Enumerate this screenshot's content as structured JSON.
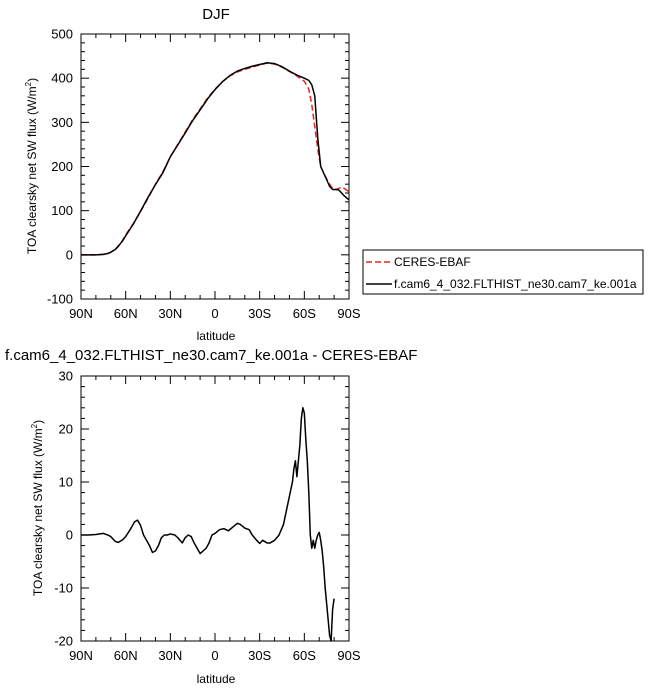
{
  "chart_data": [
    {
      "type": "line",
      "title": "DJF",
      "xlabel": "latitude",
      "ylabel": "TOA clearsky net SW flux (W/m",
      "ylabel_sup": "2",
      "ylabel_end": ")",
      "xlim": [
        90,
        -90
      ],
      "ylim": [
        -100,
        500
      ],
      "x_ticks": [
        90,
        60,
        30,
        0,
        -30,
        -60,
        -90
      ],
      "x_tick_labels": [
        "90N",
        "60N",
        "30N",
        "0",
        "30S",
        "60S",
        "90S"
      ],
      "y_ticks": [
        -100,
        0,
        100,
        200,
        300,
        400,
        500
      ],
      "y_tick_labels": [
        "-100",
        "0",
        "100",
        "200",
        "300",
        "400",
        "500"
      ],
      "legend": "outside-right",
      "series": [
        {
          "name": "CERES-EBAF",
          "color": "#e8251f",
          "dash": "dashed",
          "points": [
            [
              90,
              0
            ],
            [
              85,
              0
            ],
            [
              80,
              0
            ],
            [
              75,
              1
            ],
            [
              72,
              3
            ],
            [
              70,
              6
            ],
            [
              67,
              12
            ],
            [
              65,
              20
            ],
            [
              62,
              33
            ],
            [
              60,
              45
            ],
            [
              55,
              70
            ],
            [
              50,
              98
            ],
            [
              45,
              128
            ],
            [
              40,
              160
            ],
            [
              35,
              188
            ],
            [
              30,
              222
            ],
            [
              25,
              250
            ],
            [
              20,
              278
            ],
            [
              15,
              306
            ],
            [
              10,
              330
            ],
            [
              5,
              355
            ],
            [
              0,
              375
            ],
            [
              -5,
              392
            ],
            [
              -10,
              405
            ],
            [
              -15,
              414
            ],
            [
              -20,
              420
            ],
            [
              -25,
              425
            ],
            [
              -30,
              430
            ],
            [
              -35,
              434
            ],
            [
              -40,
              432
            ],
            [
              -45,
              425
            ],
            [
              -50,
              415
            ],
            [
              -55,
              405
            ],
            [
              -60,
              393
            ],
            [
              -63,
              375
            ],
            [
              -65,
              340
            ],
            [
              -67,
              290
            ],
            [
              -69,
              240
            ],
            [
              -71,
              200
            ],
            [
              -73,
              185
            ],
            [
              -75,
              172
            ],
            [
              -77,
              160
            ],
            [
              -79,
              150
            ],
            [
              -81,
              148
            ],
            [
              -83,
              150
            ],
            [
              -85,
              153
            ],
            [
              -87,
              150
            ],
            [
              -89,
              145
            ],
            [
              -90,
              142
            ]
          ]
        },
        {
          "name": "f.cam6_4_032.FLTHIST_ne30.cam7_ke.001a",
          "color": "#000000",
          "dash": "solid",
          "points": [
            [
              90,
              0
            ],
            [
              85,
              0
            ],
            [
              80,
              0
            ],
            [
              75,
              1
            ],
            [
              72,
              3
            ],
            [
              70,
              6
            ],
            [
              67,
              12
            ],
            [
              65,
              19
            ],
            [
              62,
              32
            ],
            [
              60,
              43
            ],
            [
              55,
              69
            ],
            [
              50,
              99
            ],
            [
              45,
              130
            ],
            [
              40,
              159
            ],
            [
              35,
              186
            ],
            [
              30,
              222
            ],
            [
              25,
              249
            ],
            [
              20,
              276
            ],
            [
              15,
              304
            ],
            [
              10,
              328
            ],
            [
              5,
              353
            ],
            [
              0,
              374
            ],
            [
              -5,
              392
            ],
            [
              -10,
              406
            ],
            [
              -15,
              416
            ],
            [
              -20,
              422
            ],
            [
              -25,
              427
            ],
            [
              -30,
              431
            ],
            [
              -35,
              435
            ],
            [
              -40,
              433
            ],
            [
              -45,
              426
            ],
            [
              -50,
              416
            ],
            [
              -55,
              407
            ],
            [
              -60,
              400
            ],
            [
              -63,
              395
            ],
            [
              -65,
              385
            ],
            [
              -67,
              360
            ],
            [
              -69,
              265
            ],
            [
              -71,
              200
            ],
            [
              -73,
              185
            ],
            [
              -75,
              170
            ],
            [
              -77,
              155
            ],
            [
              -79,
              148
            ],
            [
              -81,
              148
            ],
            [
              -83,
              147
            ],
            [
              -85,
              140
            ],
            [
              -87,
              133
            ],
            [
              -89,
              127
            ],
            [
              -90,
              125
            ]
          ]
        }
      ]
    },
    {
      "type": "line",
      "title": "f.cam6_4_032.FLTHIST_ne30.cam7_ke.001a - CERES-EBAF",
      "xlabel": "latitude",
      "ylabel": "TOA clearsky net SW flux (W/m",
      "ylabel_sup": "2",
      "ylabel_end": ")",
      "xlim": [
        90,
        -90
      ],
      "ylim": [
        -20,
        30
      ],
      "x_ticks": [
        90,
        60,
        30,
        0,
        -30,
        -60,
        -90
      ],
      "x_tick_labels": [
        "90N",
        "60N",
        "30N",
        "0",
        "30S",
        "60S",
        "90S"
      ],
      "y_ticks": [
        -20,
        -10,
        0,
        10,
        20,
        30
      ],
      "y_tick_labels": [
        "-20",
        "-10",
        "0",
        "10",
        "20",
        "30"
      ],
      "series": [
        {
          "color": "#000000",
          "dash": "solid",
          "points": [
            [
              90,
              0
            ],
            [
              85,
              0
            ],
            [
              80,
              0.1
            ],
            [
              75,
              0.3
            ],
            [
              72,
              0
            ],
            [
              70,
              -0.3
            ],
            [
              67,
              -1.2
            ],
            [
              65,
              -1.4
            ],
            [
              62,
              -0.9
            ],
            [
              60,
              -0.3
            ],
            [
              57,
              1
            ],
            [
              54,
              2.5
            ],
            [
              52,
              2.8
            ],
            [
              50,
              1.8
            ],
            [
              48,
              0
            ],
            [
              46,
              -1
            ],
            [
              44,
              -2
            ],
            [
              42,
              -3.3
            ],
            [
              40,
              -3
            ],
            [
              38,
              -2
            ],
            [
              36,
              -0.5
            ],
            [
              34,
              0
            ],
            [
              32,
              0
            ],
            [
              30,
              0.2
            ],
            [
              27,
              0
            ],
            [
              25,
              -0.5
            ],
            [
              22,
              -1.5
            ],
            [
              20,
              -0.5
            ],
            [
              18,
              0
            ],
            [
              16,
              -0.3
            ],
            [
              14,
              -1.5
            ],
            [
              12,
              -2.5
            ],
            [
              10,
              -3.5
            ],
            [
              8,
              -3
            ],
            [
              6,
              -2.5
            ],
            [
              4,
              -1.5
            ],
            [
              2,
              0
            ],
            [
              0,
              0.3
            ],
            [
              -3,
              1
            ],
            [
              -6,
              1.2
            ],
            [
              -9,
              0.8
            ],
            [
              -12,
              1.5
            ],
            [
              -15,
              2.2
            ],
            [
              -17,
              2
            ],
            [
              -20,
              1.3
            ],
            [
              -23,
              1
            ],
            [
              -25,
              0
            ],
            [
              -28,
              -1
            ],
            [
              -30,
              -1.6
            ],
            [
              -32,
              -1
            ],
            [
              -35,
              -1.5
            ],
            [
              -37,
              -1.5
            ],
            [
              -40,
              -1
            ],
            [
              -43,
              0
            ],
            [
              -46,
              2
            ],
            [
              -49,
              6
            ],
            [
              -52,
              10
            ],
            [
              -53,
              12.5
            ],
            [
              -54,
              14
            ],
            [
              -55,
              11
            ],
            [
              -56,
              14
            ],
            [
              -57,
              17
            ],
            [
              -58,
              22
            ],
            [
              -59,
              24
            ],
            [
              -60,
              23
            ],
            [
              -61,
              18
            ],
            [
              -62,
              14
            ],
            [
              -63,
              8
            ],
            [
              -64,
              0
            ],
            [
              -65,
              -2.5
            ],
            [
              -66,
              -1
            ],
            [
              -67,
              -2.5
            ],
            [
              -68,
              -1
            ],
            [
              -69,
              0
            ],
            [
              -70,
              0.5
            ],
            [
              -71,
              -1
            ],
            [
              -72,
              -3
            ],
            [
              -73,
              -6
            ],
            [
              -74,
              -10
            ],
            [
              -75,
              -13
            ],
            [
              -76,
              -16
            ],
            [
              -77,
              -19
            ],
            [
              -78,
              -20
            ],
            [
              -79,
              -14
            ],
            [
              -80,
              -12
            ]
          ]
        }
      ]
    }
  ]
}
